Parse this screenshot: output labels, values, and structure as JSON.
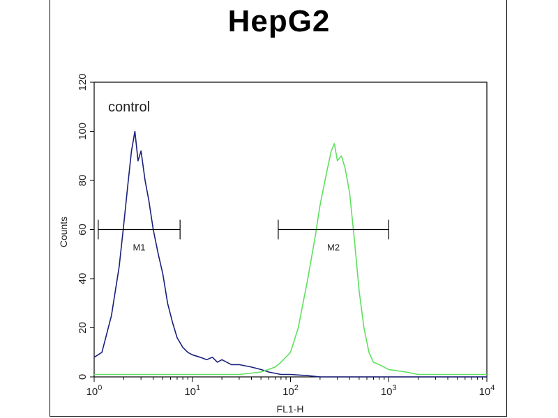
{
  "chart_data": {
    "type": "line",
    "title": "HepG2",
    "xlabel": "FL1-H",
    "ylabel": "Counts",
    "x_scale": "log",
    "xlim": [
      1,
      10000
    ],
    "ylim": [
      0,
      120
    ],
    "x_ticks": [
      {
        "value": 1,
        "base": "10",
        "exp": "0"
      },
      {
        "value": 10,
        "base": "10",
        "exp": "1"
      },
      {
        "value": 100,
        "base": "10",
        "exp": "2"
      },
      {
        "value": 1000,
        "base": "10",
        "exp": "3"
      },
      {
        "value": 10000,
        "base": "10",
        "exp": "4"
      }
    ],
    "y_ticks": [
      0,
      20,
      40,
      60,
      80,
      100,
      120
    ],
    "annotation": "control",
    "colors": {
      "control": "#1a1f7a",
      "sample": "#5ee05e"
    },
    "series": [
      {
        "x": [
          1.0,
          1.2,
          1.5,
          1.8,
          2.0,
          2.2,
          2.4,
          2.6,
          2.8,
          3.0,
          3.3,
          3.6,
          4.0,
          4.5,
          5.0,
          5.6,
          6.3,
          7.0,
          8.0,
          9.0,
          10,
          12,
          14,
          16,
          18,
          20,
          25,
          30,
          40,
          50,
          60,
          80,
          100,
          150,
          200,
          400,
          1000,
          3000,
          10000
        ],
        "y": [
          8,
          10,
          25,
          45,
          62,
          78,
          92,
          100,
          88,
          92,
          80,
          72,
          60,
          50,
          42,
          30,
          22,
          16,
          12,
          10,
          9,
          8,
          7,
          8,
          6,
          7,
          5,
          5,
          4,
          3,
          2,
          1,
          1,
          0.5,
          0,
          0,
          0,
          0,
          0
        ]
      },
      {
        "x": [
          1,
          5,
          10,
          30,
          50,
          70,
          80,
          100,
          120,
          150,
          180,
          200,
          230,
          260,
          280,
          300,
          330,
          360,
          400,
          450,
          500,
          560,
          630,
          700,
          800,
          1000,
          1500,
          2000,
          5000,
          10000
        ],
        "y": [
          1,
          1,
          1,
          1,
          2,
          4,
          6,
          10,
          20,
          40,
          58,
          70,
          82,
          92,
          95,
          88,
          90,
          85,
          75,
          55,
          35,
          20,
          10,
          6,
          5,
          3,
          2,
          1,
          1,
          1
        ]
      }
    ],
    "markers": [
      {
        "label": "M1",
        "x_start": 1.1,
        "x_end": 7.5,
        "y": 60
      },
      {
        "label": "M2",
        "x_start": 75,
        "x_end": 1000,
        "y": 60
      }
    ]
  }
}
